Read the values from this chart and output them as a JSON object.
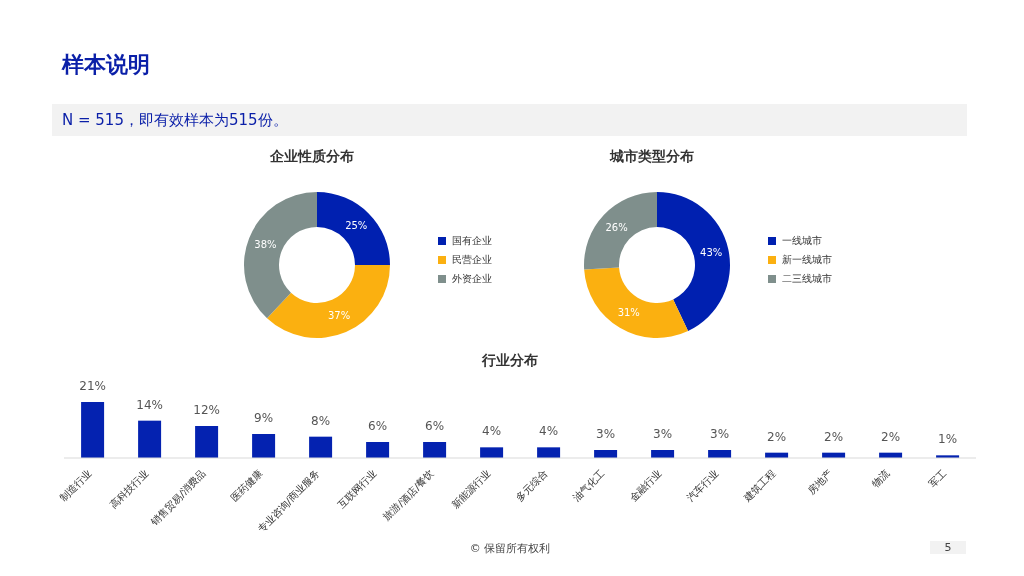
{
  "chart_data": [
    {
      "type": "other",
      "title": "样本说明",
      "subtitle": "N = 515，即有效样本为515份。",
      "annotations": [
        "© 保留所有权利",
        "5"
      ]
    },
    {
      "type": "donut",
      "title": "企业性质分布",
      "categories": [
        "国有企业",
        "民营企业",
        "外资企业"
      ],
      "values": [
        25,
        37,
        38
      ],
      "value_labels": [
        "25%",
        "37%",
        "38%"
      ],
      "colors": [
        "#0020b0",
        "#fbb010",
        "#7f8f8c"
      ],
      "legend": "right"
    },
    {
      "type": "donut",
      "title": "城市类型分布",
      "categories": [
        "一线城市",
        "新一线城市",
        "二三线城市"
      ],
      "values": [
        43,
        31,
        26
      ],
      "value_labels": [
        "43%",
        "31%",
        "26%"
      ],
      "colors": [
        "#0020b0",
        "#fbb010",
        "#7f8f8c"
      ],
      "legend": "right"
    },
    {
      "type": "bar",
      "title": "行业分布",
      "categories": [
        "制造行业",
        "高科技行业",
        "销售贸易/消费品",
        "医药健康",
        "专业咨询/商业服务",
        "互联网行业",
        "旅游/酒店/餐饮",
        "新能源行业",
        "多元综合",
        "油气化工",
        "金融行业",
        "汽车行业",
        "建筑工程",
        "房地产",
        "物流",
        "军工"
      ],
      "values": [
        21,
        14,
        12,
        9,
        8,
        6,
        6,
        4,
        4,
        3,
        3,
        3,
        2,
        2,
        2,
        1
      ],
      "value_labels": [
        "21%",
        "14%",
        "12%",
        "9%",
        "8%",
        "6%",
        "6%",
        "4%",
        "4%",
        "3%",
        "3%",
        "3%",
        "2%",
        "2%",
        "2%",
        "1%"
      ],
      "color": "#0422b0",
      "grid": false
    }
  ]
}
